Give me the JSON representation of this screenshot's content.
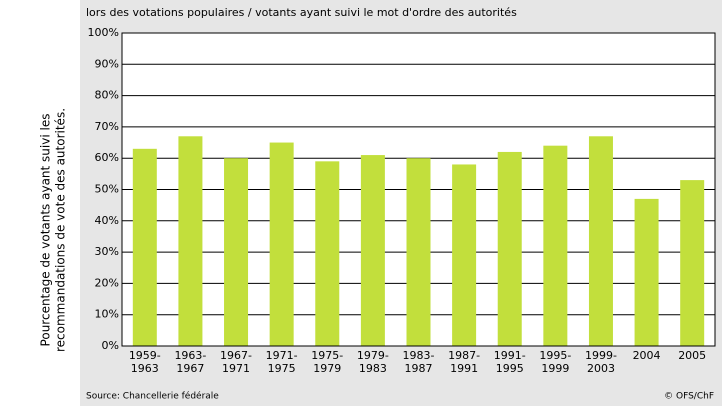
{
  "chart_data": {
    "type": "bar",
    "title": "lors des votations populaires / votants ayant suivi le mot d'ordre des autorités",
    "y_label": [
      "Pourcentage de votants ayant suivi les",
      "recommandations de vote des autorités."
    ],
    "categories": [
      [
        "1959-",
        "1963"
      ],
      [
        "1963-",
        "1967"
      ],
      [
        "1967-",
        "1971"
      ],
      [
        "1971-",
        "1975"
      ],
      [
        "1975-",
        "1979"
      ],
      [
        "1979-",
        "1983"
      ],
      [
        "1983-",
        "1987"
      ],
      [
        "1987-",
        "1991"
      ],
      [
        "1991-",
        "1995"
      ],
      [
        "1995-",
        "1999"
      ],
      [
        "1999-",
        "2003"
      ],
      [
        "2004"
      ],
      [
        "2005"
      ]
    ],
    "values": [
      63,
      67,
      60,
      65,
      59,
      61,
      60,
      58,
      62,
      64,
      67,
      47,
      53
    ],
    "color": "#c2df3c",
    "ylim": [
      0,
      100
    ],
    "yticks": [
      {
        "value": 0,
        "label": "0%"
      },
      {
        "value": 10,
        "label": "10%"
      },
      {
        "value": 20,
        "label": "20%"
      },
      {
        "value": 30,
        "label": "30%"
      },
      {
        "value": 40,
        "label": "40%"
      },
      {
        "value": 50,
        "label": "50%"
      },
      {
        "value": 60,
        "label": "60%"
      },
      {
        "value": 70,
        "label": "70%"
      },
      {
        "value": 80,
        "label": "80%"
      },
      {
        "value": 90,
        "label": "90%"
      },
      {
        "value": 100,
        "label": "100%"
      }
    ],
    "grid": true,
    "source": "Source: Chancellerie fédérale",
    "credit": "© OFS/ChF"
  }
}
